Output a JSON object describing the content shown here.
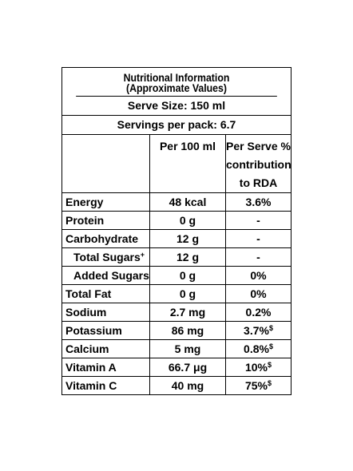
{
  "panel": {
    "title_line1": "Nutritional Information",
    "title_line2": "(Approximate Values)",
    "serve_size": "Serve Size: 150 ml",
    "servings": "Servings per pack: 6.7"
  },
  "columns": {
    "per100": "Per 100 ml",
    "perserve_line1": "Per Serve %",
    "perserve_line2": "contribution",
    "perserve_line3": "to RDA"
  },
  "rows": [
    {
      "name": "Energy",
      "per100": "48 kcal",
      "rda": "3.6%",
      "mark": ""
    },
    {
      "name": "Protein",
      "per100": "0 g",
      "rda": "-",
      "mark": ""
    },
    {
      "name": "Carbohydrate",
      "per100": "12 g",
      "rda": "-",
      "mark": ""
    },
    {
      "name": "Total Sugars",
      "name_mark": "+",
      "per100": "12 g",
      "rda": "-",
      "mark": ""
    },
    {
      "name": "Added Sugars",
      "per100": "0 g",
      "rda": "0%",
      "mark": ""
    },
    {
      "name": "Total Fat",
      "per100": "0 g",
      "rda": "0%",
      "mark": ""
    },
    {
      "name": "Sodium",
      "per100": "2.7 mg",
      "rda": "0.2%",
      "mark": ""
    },
    {
      "name": "Potassium",
      "per100": "86 mg",
      "rda": "3.7%",
      "mark": "$"
    },
    {
      "name": "Calcium",
      "per100": "5 mg",
      "rda": "0.8%",
      "mark": "$"
    },
    {
      "name": "Vitamin A",
      "per100": "66.7 μg",
      "rda": "10%",
      "mark": "$"
    },
    {
      "name": "Vitamin C",
      "per100": "40 mg",
      "rda": "75%",
      "mark": "$"
    }
  ]
}
